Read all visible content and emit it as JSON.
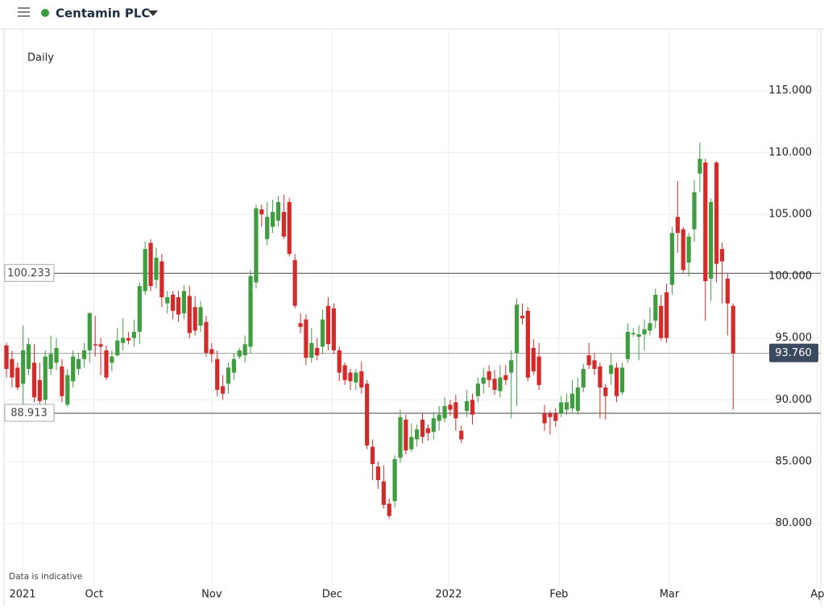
{
  "header": {
    "title": "Centamin PLC"
  },
  "chart_data": {
    "type": "candlestick",
    "timeframe": "Daily",
    "note": "Data is indicative",
    "up_color": "#3f9d3f",
    "down_color": "#d42a2a",
    "grid": true,
    "ylim": [
      74.9,
      120.0
    ],
    "yticks": [
      {
        "value": 80,
        "label": "80.000"
      },
      {
        "value": 85,
        "label": "85.000"
      },
      {
        "value": 90,
        "label": "90.000"
      },
      {
        "value": 95,
        "label": "95.000"
      },
      {
        "value": 100,
        "label": "100.000"
      },
      {
        "value": 105,
        "label": "105.000"
      },
      {
        "value": 110,
        "label": "110.000"
      },
      {
        "value": 115,
        "label": "115.000"
      }
    ],
    "xlim": [
      -0.44,
      146.8
    ],
    "xticks": [
      {
        "value": 2.9,
        "label": "2021"
      },
      {
        "value": 15.8,
        "label": "Oct"
      },
      {
        "value": 37.0,
        "label": "Nov"
      },
      {
        "value": 58.7,
        "label": "Dec"
      },
      {
        "value": 79.7,
        "label": "2022"
      },
      {
        "value": 99.6,
        "label": "Feb"
      },
      {
        "value": 119.5,
        "label": "Mar"
      },
      {
        "value": 146.2,
        "label": "Ap"
      }
    ],
    "levels": [
      {
        "value": 100.233,
        "label": "100.233"
      },
      {
        "value": 88.913,
        "label": "88.913"
      }
    ],
    "last_price": {
      "value": 93.76,
      "label": "93.760"
    },
    "open": [
      94.4,
      93.3,
      92.6,
      91.3,
      92.5,
      93,
      91.6,
      90,
      92.5,
      93,
      92.7,
      89.6,
      91.5,
      92.5,
      93.3,
      94,
      94.5,
      94.5,
      94,
      93,
      93.6,
      94.6,
      95,
      95,
      95.5,
      98.8,
      102.7,
      99.7,
      101.2,
      97.8,
      98.5,
      98.3,
      97,
      98.4,
      97.5,
      96,
      96.3,
      94.1,
      93.3,
      91.1,
      91.3,
      92.2,
      93.5,
      93.6,
      94.3,
      99.5,
      105.4,
      103,
      104,
      104.5,
      105.2,
      106,
      101.3,
      96.2,
      96.5,
      93.4,
      94.2,
      94.3,
      97.6,
      97.4,
      94,
      92.8,
      92.2,
      91.4,
      92.3,
      91.3,
      86.2,
      84.6,
      83.4,
      81.6,
      81.8,
      85.3,
      88.4,
      86,
      86.8,
      88.4,
      87.7,
      87.4,
      88.3,
      88.5,
      89.6,
      89.8,
      87.5,
      89.1,
      90,
      90.3,
      91.3,
      92.3,
      91.7,
      90.7,
      92,
      92.2,
      93.8,
      96.8,
      97.2,
      94.2,
      93.5,
      88.9,
      88.9,
      88.9,
      88.9,
      89.2,
      89.3,
      89.1,
      91,
      93.6,
      93.2,
      92.7,
      91,
      92.1,
      92.6,
      90.6,
      93.3,
      95.3,
      95.1,
      95.3,
      95.6,
      96.4,
      97.6,
      98.7,
      99.3,
      104.8,
      103.8,
      101.1,
      103.8,
      108.3,
      109.2,
      99.8,
      109.2,
      102.2,
      99.8,
      97.6
    ],
    "high": [
      94.6,
      94,
      93,
      96,
      95,
      94.5,
      93,
      94,
      95.2,
      95,
      93.3,
      92.5,
      94,
      93.8,
      94.6,
      97.1,
      96.8,
      95,
      94.4,
      94,
      95.8,
      96.6,
      95.5,
      96.5,
      99.5,
      102.8,
      103,
      102.3,
      101.8,
      98.8,
      98.8,
      98.8,
      99.3,
      99.2,
      98.4,
      98,
      96.8,
      94.6,
      94,
      92,
      93,
      93.8,
      94.2,
      95.2,
      100.5,
      105.8,
      105.8,
      106,
      106.2,
      106.5,
      106.6,
      106.3,
      101.8,
      97,
      96.9,
      95.8,
      95,
      97.3,
      98.3,
      97.8,
      94.3,
      93,
      92.5,
      92.5,
      93.1,
      91.6,
      86.8,
      85,
      84.7,
      82,
      85.5,
      89.2,
      88.8,
      88.1,
      88,
      88.9,
      88,
      89,
      89.5,
      90.2,
      90,
      90.4,
      87.9,
      90.8,
      90.5,
      91.8,
      92.6,
      92.8,
      92.4,
      92.8,
      92.8,
      94,
      98.2,
      97.8,
      97.5,
      94.9,
      94.6,
      89.6,
      89.1,
      89.3,
      90.3,
      90.5,
      91.6,
      91.8,
      92.9,
      94.6,
      93.8,
      93,
      91.3,
      93.8,
      93,
      93,
      96.2,
      95.8,
      96,
      96.5,
      97.5,
      99,
      98.5,
      99.4,
      104,
      107.7,
      104,
      103.5,
      107.8,
      110.8,
      109.5,
      106.3,
      109.3,
      102.7,
      100.2,
      97.8
    ],
    "low": [
      91.8,
      91,
      90.8,
      89.6,
      92,
      89.8,
      89.5,
      89.6,
      92,
      92.4,
      89.8,
      89.4,
      91,
      92,
      92.6,
      93,
      93.5,
      92,
      91.6,
      92.3,
      93.5,
      94,
      94.5,
      94.3,
      94.5,
      98.5,
      98.8,
      99,
      97.5,
      97,
      96.5,
      96.3,
      96.5,
      95,
      95.2,
      95.5,
      93.5,
      93,
      90.3,
      90,
      90.5,
      91.6,
      93.3,
      93,
      93.8,
      99,
      104,
      102.5,
      103.5,
      104,
      103,
      101.6,
      97.4,
      95.4,
      92.8,
      93,
      93.2,
      93.7,
      94,
      93.7,
      91.5,
      91.2,
      90.8,
      90.8,
      90.5,
      86,
      83.5,
      82.8,
      81.2,
      80.4,
      81.3,
      84.9,
      85.6,
      85.8,
      86.2,
      86.5,
      86.7,
      86.8,
      87.5,
      88.2,
      88.7,
      87.5,
      86.5,
      88.6,
      88,
      89.8,
      90.5,
      91,
      90.4,
      90.2,
      91.2,
      88.5,
      89.5,
      96.1,
      91.5,
      92,
      90.8,
      87.5,
      87.2,
      87.8,
      88.6,
      88.8,
      89,
      88.8,
      90.6,
      92.5,
      92,
      88.5,
      88.4,
      91.2,
      89.8,
      90.4,
      93,
      95.1,
      93.2,
      94,
      95.2,
      95.8,
      94.8,
      94.6,
      98.5,
      101.9,
      100.2,
      100,
      102.8,
      106.8,
      96.4,
      98,
      99.5,
      97.8,
      95.2,
      89.2
    ],
    "close": [
      92.5,
      91.8,
      91,
      94,
      94.5,
      90.2,
      89.9,
      93.5,
      93.7,
      94.2,
      90.3,
      92,
      93.5,
      93.3,
      94,
      97,
      94.4,
      94.3,
      91.8,
      93.5,
      94.8,
      95,
      94.8,
      95.5,
      99.2,
      102.2,
      99.2,
      101.5,
      98.3,
      98.3,
      97.2,
      96.9,
      98.8,
      95.4,
      95.6,
      97.5,
      93.8,
      93.7,
      90.8,
      90.5,
      92.6,
      93.3,
      94,
      94.5,
      100,
      105.5,
      105,
      104.8,
      105.2,
      106,
      103.2,
      101.8,
      97.6,
      95.9,
      93.4,
      94.6,
      93.6,
      96.5,
      94.5,
      94,
      92.2,
      91.6,
      91.5,
      92.2,
      91,
      86.3,
      84.8,
      83.5,
      81.5,
      80.6,
      85.2,
      88.6,
      85.9,
      87,
      87.6,
      87,
      87.3,
      88.5,
      88.8,
      89.5,
      89.2,
      88.5,
      86.8,
      89.9,
      88.8,
      91.3,
      91.8,
      91.6,
      90.8,
      91.8,
      91.6,
      93.2,
      97.7,
      96.6,
      91.8,
      92.3,
      91.2,
      88.1,
      88.6,
      88.3,
      89.8,
      89.8,
      90.5,
      91,
      92.5,
      92.8,
      92.5,
      91,
      90.3,
      92.8,
      90.3,
      92.6,
      95.5,
      95.4,
      95.3,
      95.7,
      96.2,
      98.5,
      95,
      95,
      103.5,
      103.5,
      100.5,
      103.2,
      106.8,
      109.5,
      99.6,
      106,
      101,
      101.2,
      97.8,
      93.76
    ]
  }
}
